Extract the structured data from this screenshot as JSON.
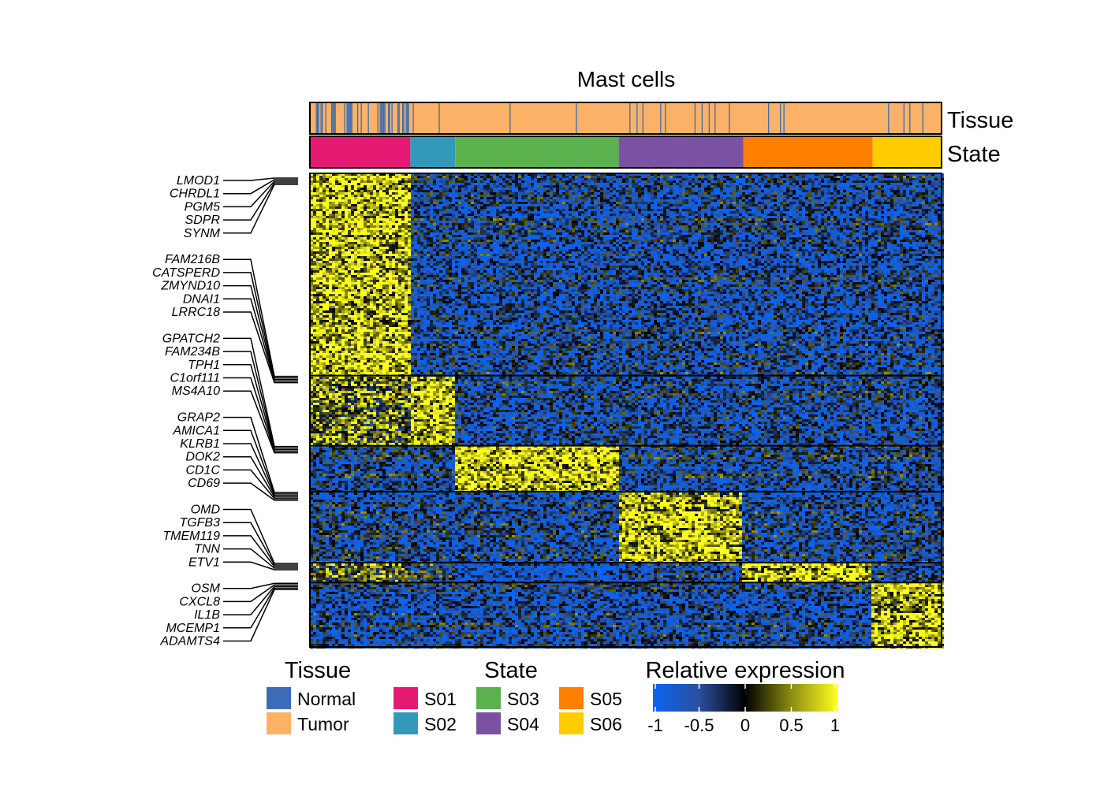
{
  "chart_data": {
    "type": "heatmap",
    "title": "Mast cells",
    "tracks": {
      "tissue_label": "Tissue",
      "state_label": "State"
    },
    "tissue_legend": {
      "title": "Tissue",
      "entries": [
        {
          "label": "Normal",
          "color": "#3a6db5"
        },
        {
          "label": "Tumor",
          "color": "#fbb266"
        }
      ]
    },
    "state_legend": {
      "title": "State",
      "entries": [
        {
          "label": "S01",
          "color": "#e41a72"
        },
        {
          "label": "S02",
          "color": "#3399bb"
        },
        {
          "label": "S03",
          "color": "#5ab14e"
        },
        {
          "label": "S04",
          "color": "#7b52a3"
        },
        {
          "label": "S05",
          "color": "#ff7f00"
        },
        {
          "label": "S06",
          "color": "#ffcc00"
        }
      ]
    },
    "state_fractions": [
      0.159,
      0.071,
      0.259,
      0.197,
      0.205,
      0.109
    ],
    "normal_fraction_by_state": [
      0.45,
      0.05,
      0.02,
      0.05,
      0.02,
      0.12
    ],
    "gene_block_fractions": [
      0.427,
      0.148,
      0.097,
      0.15,
      0.042,
      0.136
    ],
    "block_high_state": [
      0,
      1,
      2,
      3,
      4,
      5
    ],
    "colorbar": {
      "title": "Relative expression",
      "ticks": [
        "-1",
        "-0.5",
        "0",
        "0.5",
        "1"
      ],
      "tick_values": [
        -1,
        -0.5,
        0,
        0.5,
        1
      ],
      "stops": [
        {
          "value": -1,
          "color": "#0a64f0"
        },
        {
          "value": -0.5,
          "color": "#2a4fa0"
        },
        {
          "value": 0,
          "color": "#000000"
        },
        {
          "value": 0.5,
          "color": "#8c8c10"
        },
        {
          "value": 1,
          "color": "#ffff1e"
        }
      ]
    },
    "genes": [
      {
        "group": 0,
        "labels": [
          "LMOD1",
          "CHRDL1",
          "PGM5",
          "SDPR",
          "SYNM"
        ]
      },
      {
        "group": 1,
        "labels": [
          "FAM216B",
          "CATSPERD",
          "ZMYND10",
          "DNAI1",
          "LRRC18"
        ]
      },
      {
        "group": 2,
        "labels": [
          "GPATCH2",
          "FAM234B",
          "TPH1",
          "C1orf111",
          "MS4A10"
        ]
      },
      {
        "group": 3,
        "labels": [
          "GRAP2",
          "AMICA1",
          "KLRB1",
          "DOK2",
          "CD1C",
          "CD69"
        ]
      },
      {
        "group": 4,
        "labels": [
          "OMD",
          "TGFB3",
          "TMEM119",
          "TNN",
          "ETV1"
        ]
      },
      {
        "group": 5,
        "labels": [
          "OSM",
          "CXCL8",
          "IL1B",
          "MCEMP1",
          "ADAMTS4"
        ]
      }
    ]
  }
}
